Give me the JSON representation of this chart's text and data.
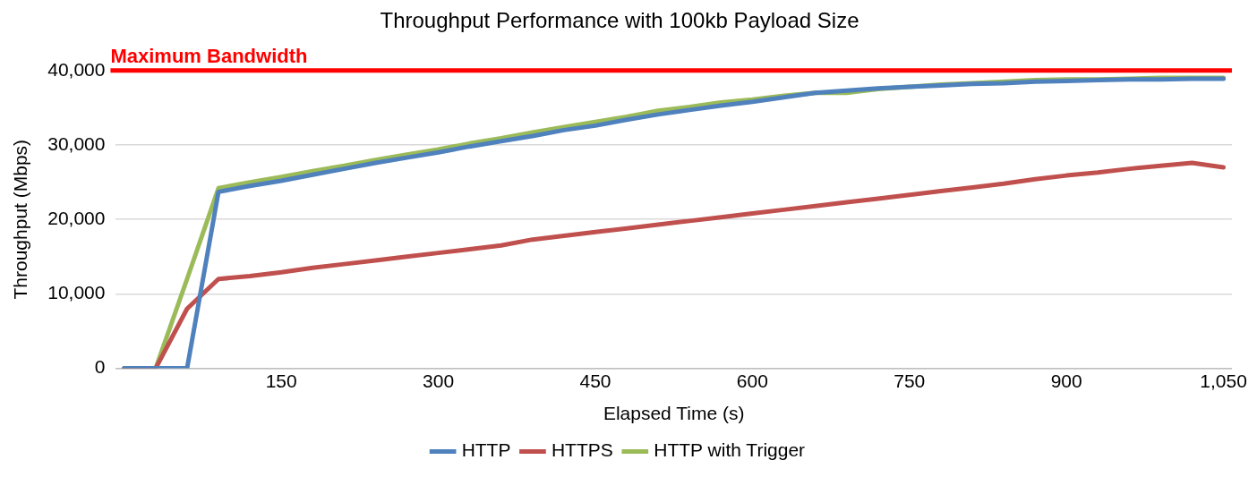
{
  "chart_data": {
    "type": "line",
    "title": "Throughput Performance with 100kb Payload Size",
    "xlabel": "Elapsed Time (s)",
    "ylabel": "Throughput (Mbps)",
    "x": [
      0,
      30,
      60,
      90,
      120,
      150,
      180,
      210,
      240,
      270,
      300,
      330,
      360,
      390,
      420,
      450,
      480,
      510,
      540,
      570,
      600,
      630,
      660,
      690,
      720,
      750,
      780,
      810,
      840,
      870,
      900,
      930,
      960,
      990,
      1020,
      1050
    ],
    "series": [
      {
        "name": "HTTP",
        "color": "#4f81bd",
        "values": [
          0,
          0,
          0,
          23700,
          24500,
          25200,
          26000,
          26800,
          27600,
          28300,
          29000,
          29800,
          30500,
          31200,
          32000,
          32600,
          33400,
          34100,
          34700,
          35300,
          35800,
          36400,
          37000,
          37300,
          37600,
          37800,
          38000,
          38200,
          38300,
          38500,
          38600,
          38700,
          38800,
          38800,
          38900,
          38900
        ]
      },
      {
        "name": "HTTPS",
        "color": "#c0504d",
        "values": [
          0,
          0,
          8000,
          12000,
          12400,
          12900,
          13500,
          14000,
          14500,
          15000,
          15500,
          16000,
          16500,
          17300,
          17800,
          18300,
          18800,
          19300,
          19800,
          20300,
          20800,
          21300,
          21800,
          22300,
          22800,
          23300,
          23800,
          24300,
          24800,
          25400,
          25900,
          26300,
          26800,
          27200,
          27600,
          27000
        ]
      },
      {
        "name": "HTTP with Trigger",
        "color": "#9bbb59",
        "values": [
          0,
          0,
          12000,
          24200,
          25000,
          25700,
          26500,
          27200,
          28000,
          28700,
          29400,
          30200,
          30900,
          31700,
          32400,
          33100,
          33800,
          34600,
          35100,
          35700,
          36100,
          36600,
          37000,
          37000,
          37500,
          37800,
          38100,
          38300,
          38500,
          38700,
          38800,
          38800,
          38900,
          39000,
          39000,
          39000
        ]
      }
    ],
    "xlim": [
      -8,
      1058
    ],
    "xticks": [
      {
        "value": 150,
        "label": "150"
      },
      {
        "value": 300,
        "label": "300"
      },
      {
        "value": 450,
        "label": "450"
      },
      {
        "value": 600,
        "label": "600"
      },
      {
        "value": 750,
        "label": "750"
      },
      {
        "value": 900,
        "label": "900"
      },
      {
        "value": 1050,
        "label": "1,050"
      }
    ],
    "ylim": [
      0,
      40000
    ],
    "yticks": [
      {
        "value": 0,
        "label": "0"
      },
      {
        "value": 10000,
        "label": "10,000"
      },
      {
        "value": 20000,
        "label": "20,000"
      },
      {
        "value": 30000,
        "label": "30,000"
      },
      {
        "value": 40000,
        "label": "40,000"
      }
    ],
    "ref_lines": [
      {
        "axis": "y",
        "value": 40000,
        "label": "Maximum Bandwidth",
        "color": "#ff0000"
      }
    ],
    "grid": "y",
    "legend": "bottom",
    "marker": "none",
    "line_style": "solid"
  }
}
